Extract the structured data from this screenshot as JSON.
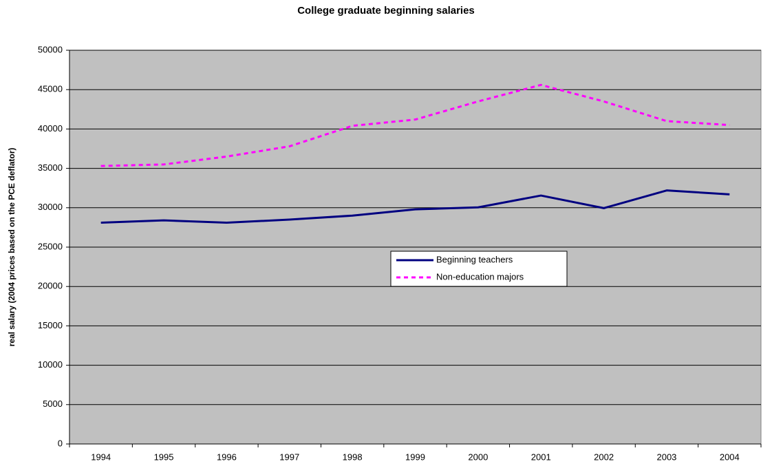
{
  "chart_data": {
    "type": "line",
    "title": "College graduate beginning salaries",
    "y_label": "real salary (2004 prices based on the PCE deflator)",
    "categories": [
      "1994",
      "1995",
      "1996",
      "1997",
      "1998",
      "1999",
      "2000",
      "2001",
      "2002",
      "2003",
      "2004"
    ],
    "series": [
      {
        "name": "Beginning teachers",
        "color": "#000080",
        "dash": "solid",
        "values": [
          28100,
          28400,
          28100,
          28500,
          29000,
          29800,
          30050,
          31550,
          29950,
          32200,
          31700
        ]
      },
      {
        "name": "Non-education majors",
        "color": "#ff00ff",
        "dash": "dashed",
        "values": [
          35300,
          35500,
          36500,
          37800,
          40400,
          41200,
          43500,
          45600,
          43500,
          41000,
          40500
        ]
      }
    ],
    "ylim": [
      0,
      50000
    ],
    "yticks": [
      0,
      5000,
      10000,
      15000,
      20000,
      25000,
      30000,
      35000,
      40000,
      45000,
      50000
    ],
    "grid": true,
    "background": "#c0c0c0"
  }
}
